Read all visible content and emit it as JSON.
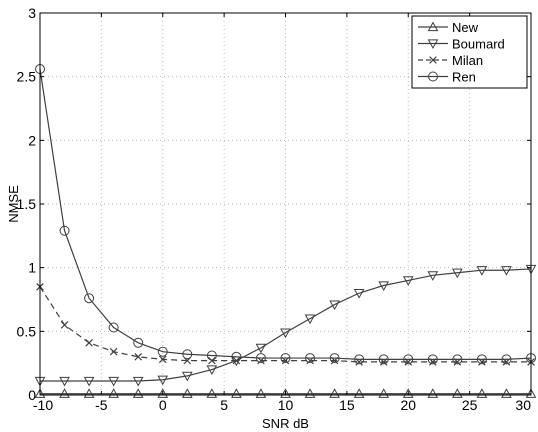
{
  "chart_data": {
    "type": "line",
    "title": "",
    "xlabel": "SNR dB",
    "ylabel": "NMSE",
    "xlim": [
      -10,
      30
    ],
    "ylim": [
      0,
      3
    ],
    "xticks": [
      -10,
      -5,
      0,
      5,
      10,
      15,
      20,
      25,
      30
    ],
    "yticks": [
      0,
      0.5,
      1,
      1.5,
      2,
      2.5,
      3
    ],
    "xtick_labels": [
      "-10",
      "-5",
      "0",
      "5",
      "10",
      "15",
      "20",
      "25",
      "30"
    ],
    "ytick_labels": [
      "0",
      "0.5",
      "1",
      "1.5",
      "2",
      "2.5",
      "3"
    ],
    "grid": true,
    "legend_position": "top-right",
    "x": [
      -10,
      -8,
      -6,
      -4,
      -2,
      0,
      2,
      4,
      6,
      8,
      10,
      12,
      14,
      16,
      18,
      20,
      22,
      24,
      26,
      28,
      30
    ],
    "series": [
      {
        "name": "New",
        "marker": "triangle-up",
        "linestyle": "solid",
        "values": [
          0.01,
          0.01,
          0.01,
          0.01,
          0.01,
          0.01,
          0.01,
          0.01,
          0.01,
          0.01,
          0.01,
          0.01,
          0.01,
          0.01,
          0.01,
          0.01,
          0.01,
          0.01,
          0.01,
          0.01,
          0.01
        ]
      },
      {
        "name": "Boumard",
        "marker": "triangle-down",
        "linestyle": "solid",
        "values": [
          0.11,
          0.11,
          0.11,
          0.11,
          0.11,
          0.12,
          0.15,
          0.2,
          0.27,
          0.37,
          0.49,
          0.6,
          0.71,
          0.8,
          0.86,
          0.9,
          0.94,
          0.96,
          0.98,
          0.98,
          0.99
        ]
      },
      {
        "name": "Milan",
        "marker": "x",
        "linestyle": "dashed",
        "values": [
          0.85,
          0.55,
          0.41,
          0.34,
          0.3,
          0.28,
          0.27,
          0.27,
          0.27,
          0.27,
          0.27,
          0.27,
          0.27,
          0.26,
          0.26,
          0.26,
          0.26,
          0.26,
          0.26,
          0.26,
          0.26
        ]
      },
      {
        "name": "Ren",
        "marker": "circle",
        "linestyle": "solid",
        "values": [
          2.56,
          1.29,
          0.76,
          0.53,
          0.41,
          0.34,
          0.32,
          0.31,
          0.3,
          0.29,
          0.29,
          0.29,
          0.29,
          0.28,
          0.28,
          0.28,
          0.28,
          0.28,
          0.28,
          0.28,
          0.29
        ]
      }
    ]
  },
  "colors": {
    "line": "#404040",
    "grid": "#bdbdbd",
    "axis": "#000000",
    "background": "#ffffff"
  }
}
